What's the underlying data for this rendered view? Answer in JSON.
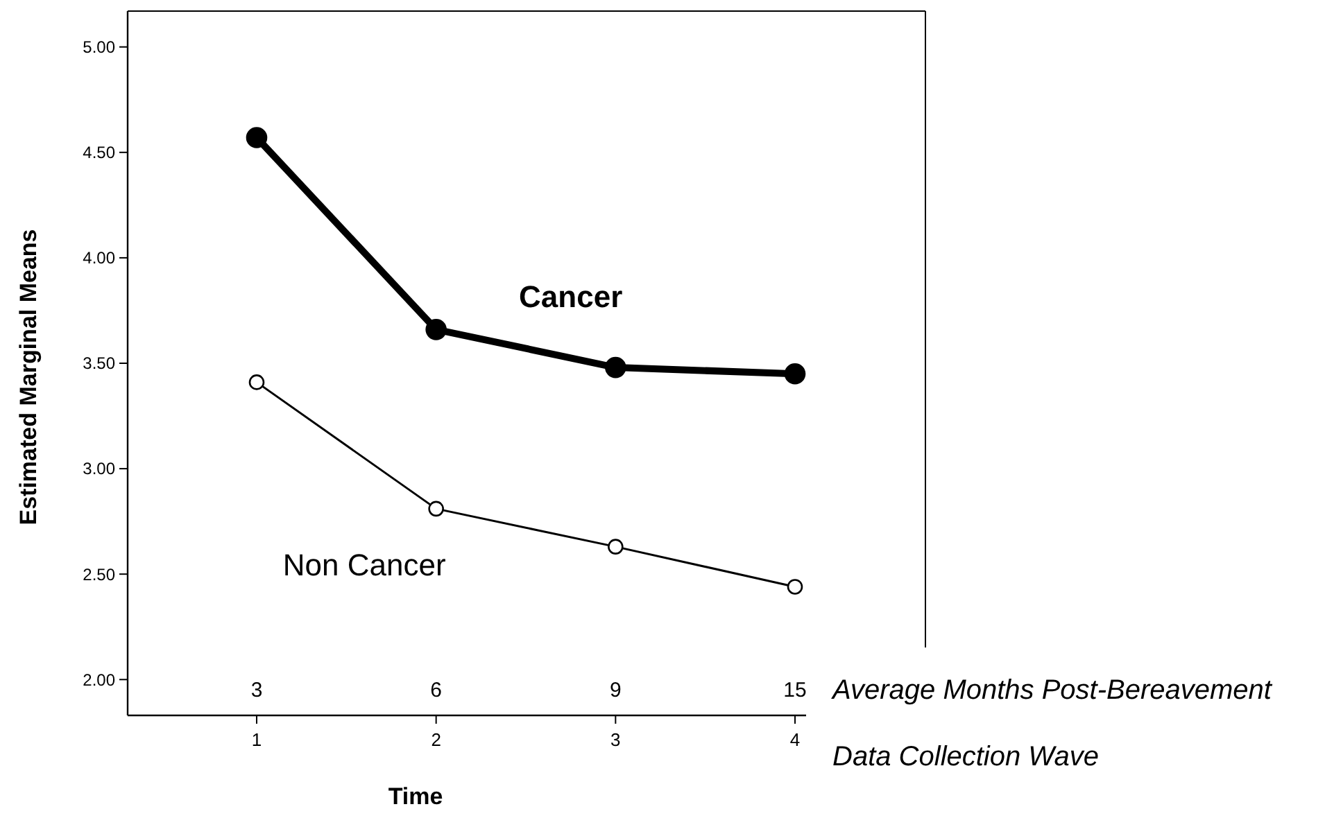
{
  "chart_data": {
    "type": "line",
    "xlabel": "Time",
    "ylabel": "Estimated Marginal Means",
    "categories": [
      "1",
      "2",
      "3",
      "4"
    ],
    "series": [
      {
        "name": "Cancer",
        "color": "#000000",
        "values": [
          4.57,
          3.66,
          3.48,
          3.45
        ]
      },
      {
        "name": "Non Cancer",
        "color": "#000000",
        "values": [
          3.41,
          2.81,
          2.63,
          2.44
        ]
      }
    ],
    "ylim": [
      1.83,
      5.17
    ],
    "yticks": [
      {
        "value": 2,
        "label": "2.00"
      },
      {
        "value": 2.5,
        "label": "2.50"
      },
      {
        "value": 3,
        "label": "3.00"
      },
      {
        "value": 3.5,
        "label": "3.50"
      },
      {
        "value": 4,
        "label": "4.00"
      },
      {
        "value": 4.5,
        "label": "4.50"
      },
      {
        "value": 5,
        "label": "5.00"
      }
    ],
    "marker": "circle",
    "grid": false,
    "annotations": [
      "3",
      "6",
      "9",
      "15",
      "Average Months Post-Bereavement",
      "Data Collection Wave"
    ]
  }
}
